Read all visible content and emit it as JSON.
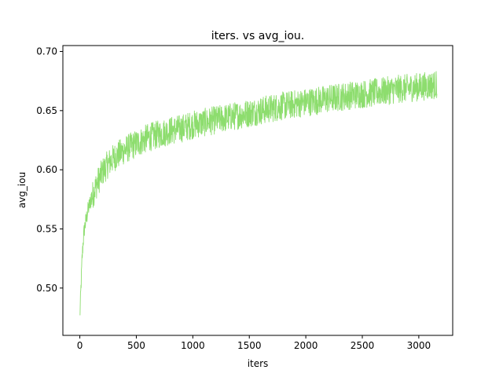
{
  "chart_data": {
    "type": "line",
    "title": "iters. vs avg_iou.",
    "xlabel": "iters",
    "ylabel": "avg_iou",
    "xlim": [
      -150,
      3300
    ],
    "ylim": [
      0.46,
      0.705
    ],
    "xticks": [
      0,
      500,
      1000,
      1500,
      2000,
      2500,
      3000
    ],
    "xtick_labels": [
      "0",
      "500",
      "1000",
      "1500",
      "2000",
      "2500",
      "3000"
    ],
    "yticks": [
      0.5,
      0.55,
      0.6,
      0.65,
      0.7
    ],
    "ytick_labels": [
      "0.50",
      "0.55",
      "0.60",
      "0.65",
      "0.70"
    ],
    "grid": false,
    "legend": "none",
    "line_color": "#8ddd6e",
    "series": [
      {
        "x": [
          0,
          10,
          20,
          30,
          40,
          50,
          75,
          100,
          150,
          200,
          250,
          300,
          400,
          500,
          600,
          700,
          800,
          900,
          1000,
          1200,
          1400,
          1600,
          1800,
          2000,
          2200,
          2400,
          2600,
          2800,
          3000,
          3160
        ],
        "values": [
          0.475,
          0.5,
          0.525,
          0.54,
          0.55,
          0.555,
          0.567,
          0.575,
          0.588,
          0.598,
          0.605,
          0.61,
          0.617,
          0.622,
          0.627,
          0.63,
          0.633,
          0.635,
          0.638,
          0.642,
          0.646,
          0.65,
          0.654,
          0.657,
          0.66,
          0.663,
          0.665,
          0.668,
          0.67,
          0.672
        ],
        "noise_amplitude": 0.012
      }
    ]
  }
}
